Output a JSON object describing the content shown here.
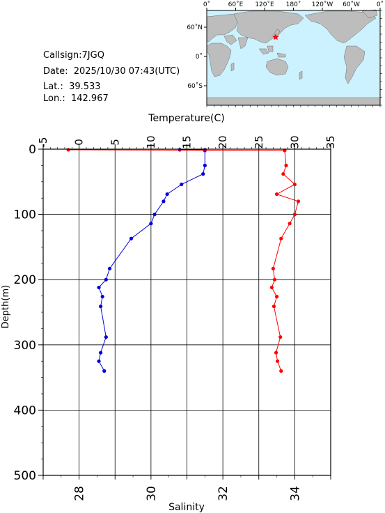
{
  "info": {
    "callsign": "Callsign:7JGQ",
    "date": "Date:  2025/10/30 07:43(UTC)",
    "lat": "Lat.:  39.533",
    "lon": "Lon.:  142.967"
  },
  "map": {
    "top_ticks": [
      "0˚",
      "60˚E",
      "120˚E",
      "180˚",
      "120˚W",
      "60˚W",
      "0˚"
    ],
    "left_ticks": [
      "60˚N",
      "0˚",
      "60˚S"
    ],
    "ocean_color": "#ccf2ff",
    "land_color": "#bdbdbd",
    "marker": {
      "lat": 39.533,
      "lon": 142.967,
      "color": "#ff0000"
    }
  },
  "chart_data": {
    "type": "line",
    "xlabel_top": "Temperature(C)",
    "xlabel_bottom": "Salinity",
    "ylabel": "Depth(m)",
    "temperature_range": [
      -5,
      35
    ],
    "temperature_ticks": [
      "-5",
      "0",
      "5",
      "10",
      "15",
      "20",
      "25",
      "30",
      "35"
    ],
    "salinity_range": [
      27,
      35
    ],
    "salinity_ticks": [
      "28",
      "30",
      "32",
      "34"
    ],
    "depth_range": [
      0,
      500
    ],
    "depth_ticks": [
      "0",
      "100",
      "200",
      "300",
      "400",
      "500"
    ],
    "grid": true,
    "series": [
      {
        "name": "Salinity",
        "axis": "salinity",
        "color": "#0000dd",
        "points": [
          {
            "depth": 1,
            "value": 30.8
          },
          {
            "depth": 1,
            "value": 31.5
          },
          {
            "depth": 2,
            "value": 31.5
          },
          {
            "depth": 25,
            "value": 31.5
          },
          {
            "depth": 38,
            "value": 31.45
          },
          {
            "depth": 54,
            "value": 30.85
          },
          {
            "depth": 69,
            "value": 30.45
          },
          {
            "depth": 80,
            "value": 30.35
          },
          {
            "depth": 100,
            "value": 30.1
          },
          {
            "depth": 114,
            "value": 30.0
          },
          {
            "depth": 137,
            "value": 29.45
          },
          {
            "depth": 183,
            "value": 28.85
          },
          {
            "depth": 200,
            "value": 28.75
          },
          {
            "depth": 212,
            "value": 28.55
          },
          {
            "depth": 226,
            "value": 28.65
          },
          {
            "depth": 241,
            "value": 28.6
          },
          {
            "depth": 288,
            "value": 28.75
          },
          {
            "depth": 312,
            "value": 28.6
          },
          {
            "depth": 325,
            "value": 28.55
          },
          {
            "depth": 340,
            "value": 28.7
          }
        ]
      },
      {
        "name": "Temperature",
        "axis": "temperature",
        "color": "#ff0000",
        "points": [
          {
            "depth": 1,
            "value": -1.5
          },
          {
            "depth": 2,
            "value": 28.6
          },
          {
            "depth": 25,
            "value": 28.8
          },
          {
            "depth": 38,
            "value": 28.4
          },
          {
            "depth": 54,
            "value": 30.0
          },
          {
            "depth": 69,
            "value": 27.5
          },
          {
            "depth": 80,
            "value": 30.5
          },
          {
            "depth": 100,
            "value": 30.0
          },
          {
            "depth": 114,
            "value": 29.3
          },
          {
            "depth": 137,
            "value": 28.1
          },
          {
            "depth": 183,
            "value": 27.0
          },
          {
            "depth": 200,
            "value": 27.2
          },
          {
            "depth": 212,
            "value": 26.8
          },
          {
            "depth": 226,
            "value": 27.5
          },
          {
            "depth": 241,
            "value": 27.1
          },
          {
            "depth": 288,
            "value": 28.0
          },
          {
            "depth": 312,
            "value": 27.4
          },
          {
            "depth": 325,
            "value": 27.6
          },
          {
            "depth": 340,
            "value": 28.1
          }
        ]
      }
    ]
  }
}
